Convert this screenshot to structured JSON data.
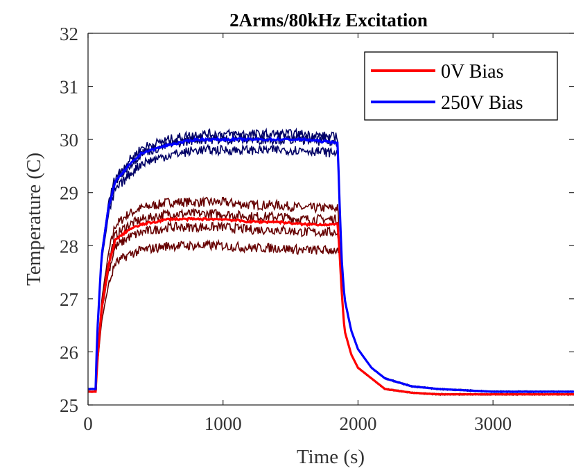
{
  "chart_data": {
    "type": "line",
    "title": "2Arms/80kHz Excitation",
    "xlabel": "Time (s)",
    "ylabel": "Temperature (C)",
    "xlim": [
      0,
      3600
    ],
    "ylim": [
      25,
      32
    ],
    "xticks": [
      0,
      1000,
      2000,
      3000
    ],
    "yticks": [
      25,
      26,
      27,
      28,
      29,
      30,
      31,
      32
    ],
    "xtick_labels": [
      "0",
      "1000",
      "2000",
      "3000"
    ],
    "ytick_labels": [
      "25",
      "26",
      "27",
      "28",
      "29",
      "30",
      "31",
      "32"
    ],
    "grid": false,
    "legend_position": "top-right",
    "series": [
      {
        "name": "0V Bias",
        "color": "#ff0000",
        "role": "mean",
        "x": [
          0,
          60,
          65,
          100,
          150,
          200,
          300,
          400,
          600,
          800,
          1000,
          1200,
          1400,
          1600,
          1800,
          1850,
          1860,
          1880,
          1900,
          1950,
          2000,
          2100,
          2200,
          2400,
          2600,
          3000,
          3600
        ],
        "y": [
          25.25,
          25.25,
          25.7,
          26.8,
          27.6,
          28.1,
          28.3,
          28.4,
          28.5,
          28.5,
          28.5,
          28.45,
          28.45,
          28.4,
          28.4,
          28.4,
          28.0,
          27.1,
          26.4,
          25.95,
          25.7,
          25.5,
          25.3,
          25.23,
          25.2,
          25.2,
          25.2
        ]
      },
      {
        "name": "250V Bias",
        "color": "#0000ff",
        "role": "mean",
        "x": [
          0,
          60,
          65,
          100,
          150,
          200,
          300,
          400,
          600,
          800,
          1000,
          1200,
          1400,
          1600,
          1800,
          1850,
          1860,
          1880,
          1900,
          1950,
          2000,
          2100,
          2200,
          2400,
          2600,
          3000,
          3600
        ],
        "y": [
          25.3,
          25.3,
          26.2,
          27.8,
          28.7,
          29.2,
          29.5,
          29.75,
          29.9,
          30.0,
          30.0,
          30.0,
          30.0,
          30.0,
          29.95,
          29.95,
          29.0,
          27.7,
          27.0,
          26.4,
          26.05,
          25.7,
          25.5,
          25.35,
          25.3,
          25.25,
          25.25
        ]
      }
    ],
    "trials": [
      {
        "group": "0V Bias",
        "color": "#660000",
        "plateau": [
          28.82,
          28.6,
          28.35,
          28.0
        ]
      },
      {
        "group": "250V Bias",
        "color": "#000066",
        "plateau": [
          30.1,
          30.0,
          29.8
        ]
      }
    ]
  }
}
